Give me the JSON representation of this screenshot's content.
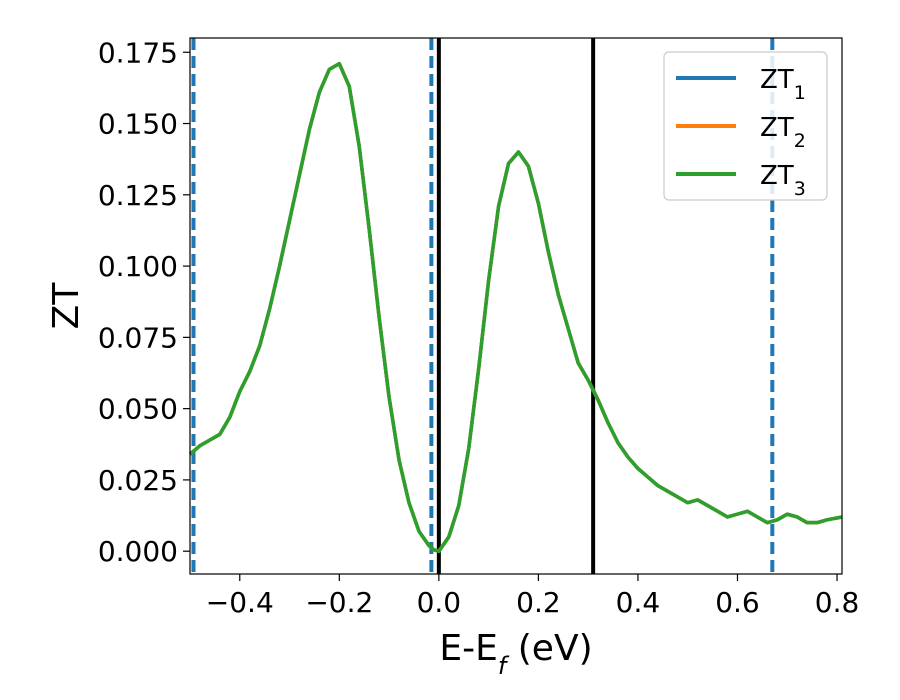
{
  "chart_data": {
    "type": "line",
    "xlabel": "E-E",
    "xlabel_sub": "f",
    "xlabel_unit": " (eV)",
    "ylabel": "ZT",
    "xlim": [
      -0.5,
      0.81
    ],
    "ylim": [
      -0.008,
      0.18
    ],
    "x_ticks": [
      -0.4,
      -0.2,
      0.0,
      0.2,
      0.4,
      0.6,
      0.8
    ],
    "x_tick_labels": [
      "−0.4",
      "−0.2",
      "0.0",
      "0.2",
      "0.4",
      "0.6",
      "0.8"
    ],
    "y_ticks": [
      0.0,
      0.025,
      0.05,
      0.075,
      0.1,
      0.125,
      0.15,
      0.175
    ],
    "y_tick_labels": [
      "0.000",
      "0.025",
      "0.050",
      "0.075",
      "0.100",
      "0.125",
      "0.150",
      "0.175"
    ],
    "grid": false,
    "legend_position": "top-right",
    "vertical_lines": [
      {
        "x": -0.493,
        "style": "dashed",
        "color": "#1f77b4"
      },
      {
        "x": -0.015,
        "style": "dashed",
        "color": "#1f77b4"
      },
      {
        "x": 0.0,
        "style": "solid",
        "color": "#000000"
      },
      {
        "x": 0.31,
        "style": "solid",
        "color": "#000000"
      },
      {
        "x": 0.67,
        "style": "dashed",
        "color": "#1f77b4"
      }
    ],
    "x": [
      -0.5,
      -0.48,
      -0.46,
      -0.44,
      -0.42,
      -0.4,
      -0.38,
      -0.36,
      -0.34,
      -0.32,
      -0.3,
      -0.28,
      -0.26,
      -0.24,
      -0.22,
      -0.2,
      -0.18,
      -0.16,
      -0.14,
      -0.12,
      -0.1,
      -0.08,
      -0.06,
      -0.04,
      -0.02,
      -0.01,
      0.0,
      0.02,
      0.04,
      0.06,
      0.08,
      0.1,
      0.12,
      0.14,
      0.16,
      0.18,
      0.2,
      0.22,
      0.24,
      0.26,
      0.28,
      0.3,
      0.32,
      0.34,
      0.36,
      0.38,
      0.4,
      0.42,
      0.44,
      0.46,
      0.48,
      0.5,
      0.52,
      0.54,
      0.56,
      0.58,
      0.6,
      0.62,
      0.64,
      0.66,
      0.68,
      0.7,
      0.72,
      0.74,
      0.76,
      0.78,
      0.81
    ],
    "series": [
      {
        "name": "ZT",
        "name_sub": "1",
        "color": "#1f77b4",
        "values": [
          0.034,
          0.037,
          0.039,
          0.041,
          0.047,
          0.056,
          0.063,
          0.072,
          0.085,
          0.1,
          0.116,
          0.132,
          0.148,
          0.161,
          0.169,
          0.171,
          0.163,
          0.142,
          0.113,
          0.082,
          0.054,
          0.032,
          0.017,
          0.007,
          0.002,
          0.0005,
          0.0,
          0.005,
          0.016,
          0.036,
          0.064,
          0.095,
          0.121,
          0.136,
          0.14,
          0.135,
          0.122,
          0.105,
          0.09,
          0.078,
          0.066,
          0.06,
          0.053,
          0.045,
          0.038,
          0.033,
          0.029,
          0.026,
          0.023,
          0.021,
          0.019,
          0.017,
          0.018,
          0.016,
          0.014,
          0.012,
          0.013,
          0.014,
          0.012,
          0.01,
          0.011,
          0.013,
          0.012,
          0.01,
          0.01,
          0.011,
          0.012
        ]
      },
      {
        "name": "ZT",
        "name_sub": "2",
        "color": "#ff7f0e",
        "values": [
          0.034,
          0.037,
          0.039,
          0.041,
          0.047,
          0.056,
          0.063,
          0.072,
          0.085,
          0.1,
          0.116,
          0.132,
          0.148,
          0.161,
          0.169,
          0.171,
          0.163,
          0.142,
          0.113,
          0.082,
          0.054,
          0.032,
          0.017,
          0.007,
          0.002,
          0.0005,
          0.0,
          0.005,
          0.016,
          0.036,
          0.064,
          0.095,
          0.121,
          0.136,
          0.14,
          0.135,
          0.122,
          0.105,
          0.09,
          0.078,
          0.066,
          0.06,
          0.053,
          0.045,
          0.038,
          0.033,
          0.029,
          0.026,
          0.023,
          0.021,
          0.019,
          0.017,
          0.018,
          0.016,
          0.014,
          0.012,
          0.013,
          0.014,
          0.012,
          0.01,
          0.011,
          0.013,
          0.012,
          0.01,
          0.01,
          0.011,
          0.012
        ]
      },
      {
        "name": "ZT",
        "name_sub": "3",
        "color": "#2ca02c",
        "values": [
          0.034,
          0.037,
          0.039,
          0.041,
          0.047,
          0.056,
          0.063,
          0.072,
          0.085,
          0.1,
          0.116,
          0.132,
          0.148,
          0.161,
          0.169,
          0.171,
          0.163,
          0.142,
          0.113,
          0.082,
          0.054,
          0.032,
          0.017,
          0.007,
          0.002,
          0.0005,
          0.0,
          0.005,
          0.016,
          0.036,
          0.064,
          0.095,
          0.121,
          0.136,
          0.14,
          0.135,
          0.122,
          0.105,
          0.09,
          0.078,
          0.066,
          0.06,
          0.053,
          0.045,
          0.038,
          0.033,
          0.029,
          0.026,
          0.023,
          0.021,
          0.019,
          0.017,
          0.018,
          0.016,
          0.014,
          0.012,
          0.013,
          0.014,
          0.012,
          0.01,
          0.011,
          0.013,
          0.012,
          0.01,
          0.01,
          0.011,
          0.012
        ]
      }
    ]
  }
}
